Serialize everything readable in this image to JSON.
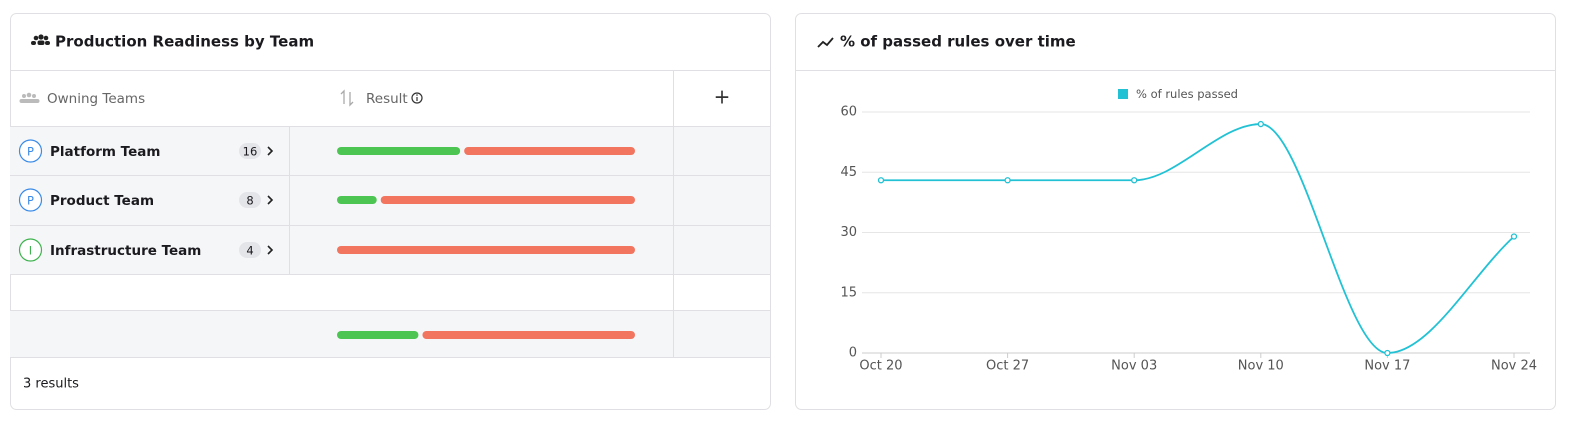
{
  "table_panel": {
    "title": "Production Readiness by Team",
    "columns": [
      "Owning Teams",
      "Result"
    ],
    "add_column_label": "+",
    "rows": [
      {
        "initial": "P",
        "color": "#3b8be8",
        "name": "Platform Team",
        "count": 16,
        "passed_pct": 42
      },
      {
        "initial": "P",
        "color": "#3b8be8",
        "name": "Product Team",
        "count": 8,
        "passed_pct": 14
      },
      {
        "initial": "I",
        "color": "#3fb34f",
        "name": "Infrastructure Team",
        "count": 4,
        "passed_pct": 0
      }
    ],
    "total_passed_pct": 28,
    "pass_color": "#4cc552",
    "fail_color": "#f27560",
    "footer": "3 results"
  },
  "chart_data": {
    "type": "line",
    "title": "% of passed rules over time",
    "categories": [
      "Oct 20",
      "Oct 27",
      "Nov 03",
      "Nov 10",
      "Nov 17",
      "Nov 24"
    ],
    "series": [
      {
        "name": "% of rules passed",
        "color": "#22c2d4",
        "values": [
          43,
          43,
          43,
          57,
          0,
          29
        ]
      }
    ],
    "ylim": [
      0,
      60
    ],
    "yticks": [
      0,
      15,
      30,
      45,
      60
    ],
    "grid": true
  }
}
